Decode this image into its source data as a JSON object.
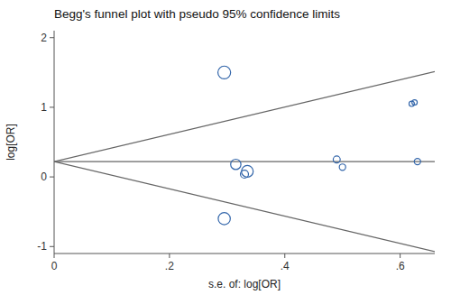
{
  "chart_data": {
    "type": "funnel",
    "title": "Begg's funnel plot with pseudo 95% confidence limits",
    "x_label": "s.e. of: log[OR]",
    "y_label": "log[OR]",
    "xlim": [
      0,
      0.66
    ],
    "ylim": [
      -1.1,
      2.1
    ],
    "xticks": [
      0,
      {
        "value": 0.2,
        "label": ".2"
      },
      {
        "value": 0.4,
        "label": ".4"
      },
      {
        "value": 0.6,
        "label": ".6"
      }
    ],
    "yticks": [
      -1,
      0,
      1,
      2
    ],
    "grid": false,
    "marker": "circle",
    "series": [
      {
        "type": "scatter",
        "x": [
          0.295,
          0.315,
          0.33,
          0.335,
          0.295,
          0.49,
          0.5,
          0.62,
          0.625,
          0.63
        ],
        "values": [
          1.5,
          0.18,
          0.04,
          0.08,
          -0.6,
          0.25,
          0.14,
          1.05,
          1.07,
          0.22
        ],
        "size": [
          200,
          130,
          80,
          170,
          180,
          60,
          50,
          35,
          35,
          50
        ]
      }
    ],
    "lines": [
      {
        "x": [
          0,
          0.66
        ],
        "values": [
          0.22,
          1.5136
        ]
      },
      {
        "x": [
          0,
          0.66
        ],
        "values": [
          0.22,
          -1.0736
        ]
      },
      {
        "x": [
          0,
          0.66
        ],
        "values": [
          0.22,
          0.22
        ]
      }
    ]
  }
}
